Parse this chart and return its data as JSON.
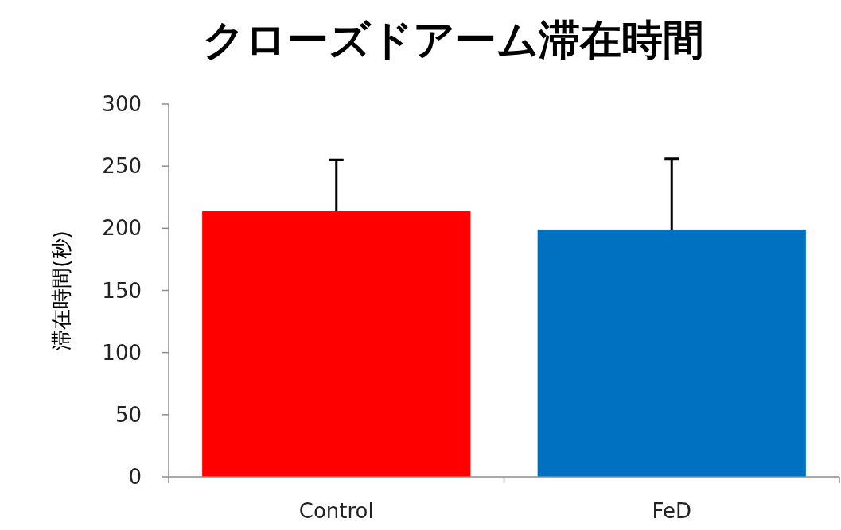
{
  "chart_data": {
    "type": "bar",
    "title": "クローズドアーム滞在時間",
    "ylabel": "滞在時間(秒)",
    "categories": [
      "Control",
      "FeD"
    ],
    "values": [
      214,
      199
    ],
    "colors": [
      "#ff0000",
      "#0070c0"
    ],
    "errors": [
      [
        214,
        255
      ],
      [
        199,
        256
      ]
    ],
    "ylim": [
      0,
      300
    ],
    "yticks": [
      0,
      50,
      100,
      150,
      200,
      250,
      300
    ],
    "grid": false
  }
}
